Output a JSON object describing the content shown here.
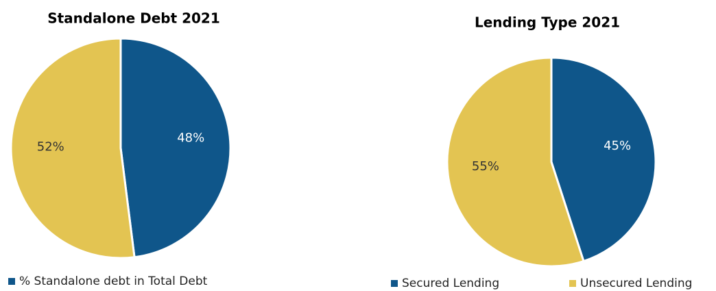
{
  "chart_data": [
    {
      "type": "pie",
      "title": "Standalone Debt 2021",
      "categories": [
        "% Standalone debt in Total Debt",
        null
      ],
      "values": [
        48,
        52
      ],
      "value_labels": [
        "48%",
        "52%"
      ],
      "colors": [
        "#0f568a",
        "#e3c452"
      ]
    },
    {
      "type": "pie",
      "title": "Lending Type 2021",
      "categories": [
        "Secured Lending",
        "Unsecured Lending"
      ],
      "values": [
        45,
        55
      ],
      "value_labels": [
        "45%",
        "55%"
      ],
      "colors": [
        "#0f568a",
        "#e3c452"
      ]
    }
  ]
}
